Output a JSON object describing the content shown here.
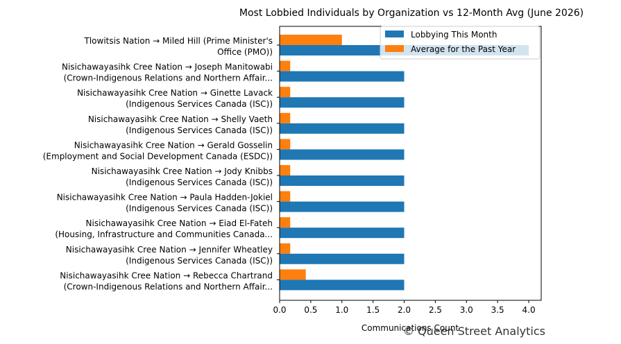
{
  "chart_data": {
    "type": "bar",
    "orientation": "horizontal",
    "title": "Most Lobbied Individuals by Organization vs 12-Month Avg (June 2026)",
    "xlabel": "Communications Count",
    "ylabel": "",
    "xlim": [
      0,
      4.2
    ],
    "xticks": [
      "0.0",
      "0.5",
      "1.0",
      "1.5",
      "2.0",
      "2.5",
      "3.0",
      "3.5",
      "4.0"
    ],
    "grid": false,
    "legend_position": "top-right",
    "categories": [
      [
        "Tlowitsis Nation → Miled Hill (Prime Minister's",
        "Office (PMO))"
      ],
      [
        "Nisichawayasihk Cree Nation → Joseph Manitowabi",
        "(Crown-Indigenous Relations and Northern Affair..."
      ],
      [
        "Nisichawayasihk Cree Nation → Ginette Lavack",
        "(Indigenous Services Canada (ISC))"
      ],
      [
        "Nisichawayasihk Cree Nation → Shelly Vaeth",
        "(Indigenous Services Canada (ISC))"
      ],
      [
        "Nisichawayasihk Cree Nation → Gerald Gosselin",
        "(Employment and Social Development Canada (ESDC))"
      ],
      [
        "Nisichawayasihk Cree Nation → Jody Knibbs",
        "(Indigenous Services Canada (ISC))"
      ],
      [
        "Nisichawayasihk Cree Nation → Paula Hadden-Jokiel",
        "(Indigenous Services Canada (ISC))"
      ],
      [
        "Nisichawayasihk Cree Nation → Eiad El-Fateh",
        "(Housing, Infrastructure and Communities Canada..."
      ],
      [
        "Nisichawayasihk Cree Nation → Jennifer Wheatley",
        "(Indigenous Services Canada (ISC))"
      ],
      [
        "Nisichawayasihk Cree Nation → Rebecca Chartrand",
        "(Crown-Indigenous Relations and Northern Affair..."
      ]
    ],
    "series": [
      {
        "name": "Lobbying This Month",
        "color": "#1f77b4",
        "values": [
          4,
          2,
          2,
          2,
          2,
          2,
          2,
          2,
          2,
          2
        ]
      },
      {
        "name": "Average for the Past Year",
        "color": "#ff7f0e",
        "values": [
          1.0,
          0.17,
          0.17,
          0.17,
          0.17,
          0.17,
          0.17,
          0.17,
          0.17,
          0.42
        ]
      }
    ]
  },
  "watermark": "© Queen Street Analytics"
}
